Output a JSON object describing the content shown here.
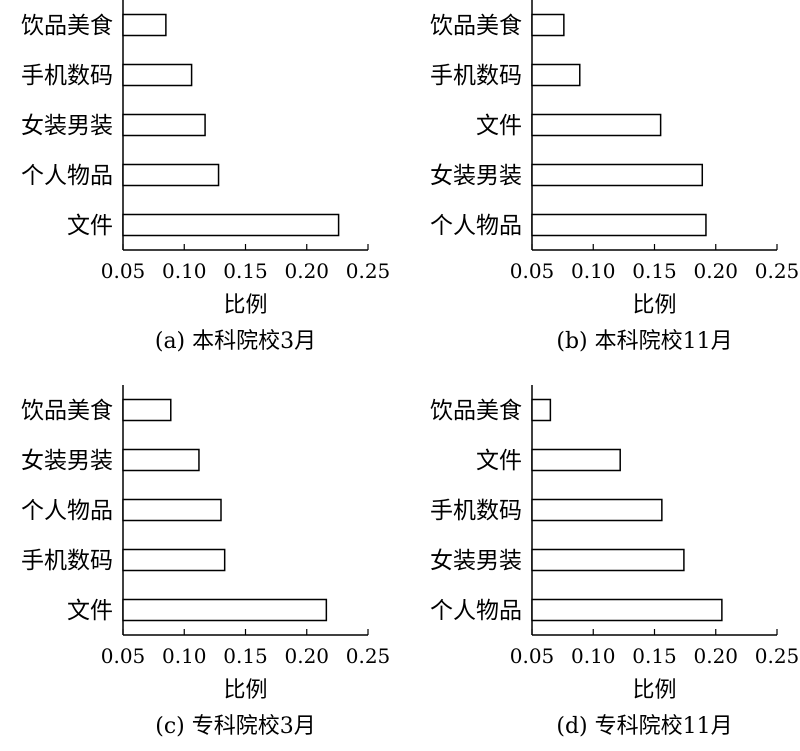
{
  "chart_data": [
    {
      "type": "bar",
      "orientation": "horizontal",
      "caption": "(a) 本科院校3月",
      "xlabel": "比例",
      "xlim": [
        0.05,
        0.25
      ],
      "xticks": [
        "0.05",
        "0.10",
        "0.15",
        "0.20",
        "0.25"
      ],
      "categories": [
        "饮品美食",
        "手机数码",
        "女装男装",
        "个人物品",
        "文件"
      ],
      "values": [
        0.085,
        0.106,
        0.117,
        0.128,
        0.226
      ]
    },
    {
      "type": "bar",
      "orientation": "horizontal",
      "caption": "(b) 本科院校11月",
      "xlabel": "比例",
      "xlim": [
        0.05,
        0.25
      ],
      "xticks": [
        "0.05",
        "0.10",
        "0.15",
        "0.20",
        "0.25"
      ],
      "categories": [
        "饮品美食",
        "手机数码",
        "文件",
        "女装男装",
        "个人物品"
      ],
      "values": [
        0.076,
        0.089,
        0.155,
        0.189,
        0.192
      ]
    },
    {
      "type": "bar",
      "orientation": "horizontal",
      "caption": "(c) 专科院校3月",
      "xlabel": "比例",
      "xlim": [
        0.05,
        0.25
      ],
      "xticks": [
        "0.05",
        "0.10",
        "0.15",
        "0.20",
        "0.25"
      ],
      "categories": [
        "饮品美食",
        "女装男装",
        "个人物品",
        "手机数码",
        "文件"
      ],
      "values": [
        0.089,
        0.112,
        0.13,
        0.133,
        0.216
      ]
    },
    {
      "type": "bar",
      "orientation": "horizontal",
      "caption": "(d) 专科院校11月",
      "xlabel": "比例",
      "xlim": [
        0.05,
        0.25
      ],
      "xticks": [
        "0.05",
        "0.10",
        "0.15",
        "0.20",
        "0.25"
      ],
      "categories": [
        "饮品美食",
        "文件",
        "手机数码",
        "女装男装",
        "个人物品"
      ],
      "values": [
        0.065,
        0.122,
        0.156,
        0.174,
        0.205
      ]
    }
  ]
}
